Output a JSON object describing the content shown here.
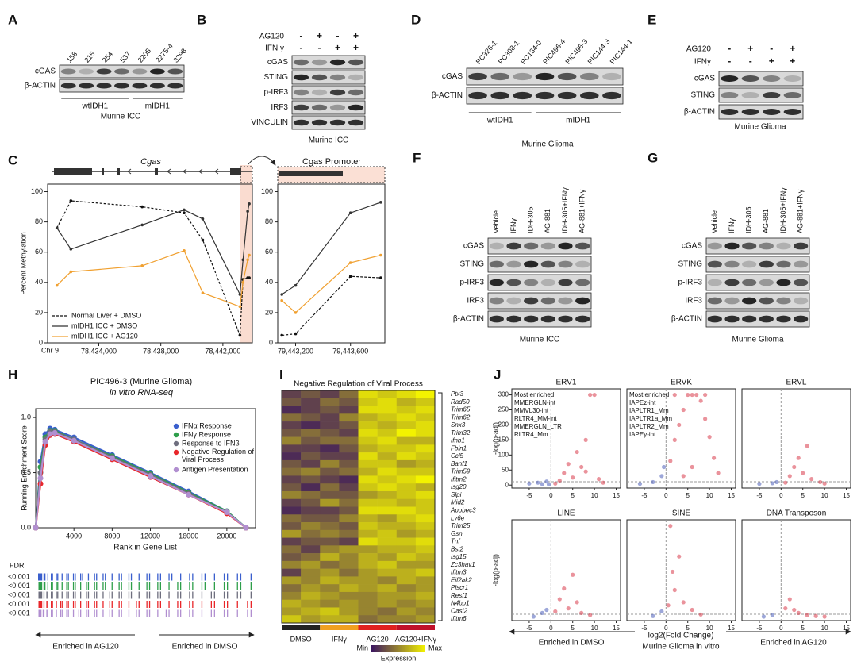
{
  "figure": {
    "letters": [
      "A",
      "B",
      "C",
      "D",
      "E",
      "F",
      "G",
      "H",
      "I",
      "J"
    ],
    "blots": {
      "A": {
        "lanes": [
          "158",
          "215",
          "254",
          "537",
          "2205",
          "2275-4",
          "3298"
        ],
        "rows": [
          "cGAS",
          "β-ACTIN"
        ],
        "groups": [
          "wtIDH1",
          "mIDH1"
        ],
        "caption": "Murine ICC"
      },
      "B": {
        "treatments": [
          {
            "name": "AG120",
            "marks": [
              "-",
              "+",
              "-",
              "+"
            ]
          },
          {
            "name": "IFN γ",
            "marks": [
              "-",
              "-",
              "+",
              "+"
            ]
          }
        ],
        "rows": [
          "cGAS",
          "STING",
          "p-IRF3",
          "IRF3",
          "VINCULIN"
        ],
        "caption": "Murine ICC"
      },
      "D": {
        "lanes": [
          "PC326-1",
          "PC308-1",
          "PC134-0",
          "PIC496-4",
          "PIC496-3",
          "PIC144-3",
          "PIC144-1"
        ],
        "rows": [
          "cGAS",
          "β-ACTIN"
        ],
        "groups": [
          "wtIDH1",
          "mIDH1"
        ],
        "caption": "Murine Glioma"
      },
      "E": {
        "treatments": [
          {
            "name": "AG120",
            "marks": [
              "-",
              "+",
              "-",
              "+"
            ]
          },
          {
            "name": "IFNγ",
            "marks": [
              "-",
              "-",
              "+",
              "+"
            ]
          }
        ],
        "rows": [
          "cGAS",
          "STING",
          "β-ACTIN"
        ],
        "caption": "Murine Glioma"
      },
      "F": {
        "lanes": [
          "Vehicle",
          "IFNγ",
          "IDH-305",
          "AG-881",
          "IDH-305+IFNγ",
          "AG-881+IFNγ"
        ],
        "rows": [
          "cGAS",
          "STING",
          "p-IRF3",
          "IRF3",
          "β-ACTIN"
        ],
        "caption": "Murine ICC"
      },
      "G": {
        "lanes": [
          "Vehicle",
          "IFNγ",
          "IDH-305",
          "AG-881",
          "IDH-305+IFNγ",
          "AG-881+IFNγ"
        ],
        "rows": [
          "cGAS",
          "STING",
          "p-IRF3",
          "IRF3",
          "β-ACTIN"
        ],
        "caption": "Murine Glioma"
      }
    },
    "volcano": {
      "xlabel": "log2(Fold Change)",
      "subtitle": "Murine Glioma in vitro",
      "left": "Enriched in DMSO",
      "right": "Enriched in AG120"
    }
  },
  "chart_data": [
    {
      "type": "line",
      "title": "Cgas",
      "xlabel": "Chr 9",
      "ylabel": "Percent Methylation",
      "legend": "lower left",
      "xlim": [
        78430700,
        78443900
      ],
      "xticks": [
        {
          "value": 78434000,
          "label": "78,434,000"
        },
        {
          "value": 78438000,
          "label": "78,438,000"
        },
        {
          "value": 78442000,
          "label": "78,442,000"
        }
      ],
      "ylim": [
        0,
        105
      ],
      "yticks": [
        0,
        20,
        40,
        60,
        80,
        100
      ],
      "x": [
        78431300,
        78432200,
        78436800,
        78439500,
        78440700,
        78443100,
        78443300,
        78443600,
        78443700
      ],
      "series": [
        {
          "name": "Normal Liver + DMSO",
          "color": "#111111",
          "dashed": true,
          "values": [
            76,
            94,
            90,
            86,
            68,
            5,
            42,
            43,
            43
          ]
        },
        {
          "name": "mIDH1 ICC + DMSO",
          "color": "#333333",
          "values": [
            76,
            62,
            78,
            88,
            82,
            32,
            55,
            87,
            92
          ]
        },
        {
          "name": "mIDH1 ICC + AG120",
          "color": "#f0a030",
          "values": [
            38,
            47,
            51,
            61,
            33,
            24,
            40,
            55,
            58
          ]
        }
      ]
    },
    {
      "type": "line",
      "title": "Cgas Promoter",
      "xlim": [
        79443070,
        79443850
      ],
      "xticks": [
        {
          "value": 79443200,
          "label": "79,443,200"
        },
        {
          "value": 79443600,
          "label": "79,443,600"
        }
      ],
      "ylim": [
        0,
        105
      ],
      "yticks": [
        0,
        20,
        40,
        60,
        80,
        100
      ],
      "x": [
        79443100,
        79443200,
        79443600,
        79443820
      ],
      "series": [
        {
          "color": "#111111",
          "dashed": true,
          "values": [
            5,
            6,
            44,
            43
          ]
        },
        {
          "color": "#333333",
          "values": [
            32,
            38,
            86,
            93
          ]
        },
        {
          "color": "#f0a030",
          "values": [
            28,
            20,
            53,
            58
          ]
        }
      ]
    },
    {
      "type": "line",
      "title": "PIC496-3 (Murine Glioma)",
      "subtitle": "in vitro RNA-seq",
      "xlabel": "Rank in Gene List",
      "ylabel": "Running Enrichment Score",
      "legend": "upper right",
      "markers": true,
      "xlim": [
        0,
        23000
      ],
      "xticks": [
        4000,
        8000,
        12000,
        16000,
        20000
      ],
      "ylim": [
        0,
        1.08
      ],
      "yticks": [
        {
          "value": 0,
          "label": "0.0"
        },
        0.5,
        {
          "value": 1,
          "label": "1.0"
        }
      ],
      "x": [
        0,
        500,
        1000,
        1500,
        2000,
        4000,
        8000,
        12000,
        16000,
        20000,
        22000
      ],
      "series": [
        {
          "name": "IFNα Response",
          "color": "#3a5fcd",
          "values": [
            0,
            0.6,
            0.85,
            0.9,
            0.89,
            0.82,
            0.66,
            0.5,
            0.33,
            0.15,
            0
          ]
        },
        {
          "name": "IFNγ Response",
          "color": "#2e9e4a",
          "values": [
            0,
            0.55,
            0.82,
            0.88,
            0.88,
            0.8,
            0.65,
            0.49,
            0.32,
            0.15,
            0
          ]
        },
        {
          "name": "Response to IFNβ",
          "color": "#6e6e7e",
          "values": [
            0,
            0.5,
            0.8,
            0.87,
            0.87,
            0.8,
            0.64,
            0.48,
            0.31,
            0.14,
            0
          ]
        },
        {
          "name": "Negative Regulation of Viral Process",
          "color": "#e8262a",
          "values": [
            0,
            0.4,
            0.75,
            0.84,
            0.85,
            0.78,
            0.62,
            0.46,
            0.3,
            0.13,
            0
          ]
        },
        {
          "name": "Antigen Presentation",
          "color": "#b18fd0",
          "values": [
            0,
            0.45,
            0.78,
            0.85,
            0.86,
            0.79,
            0.63,
            0.47,
            0.3,
            0.14,
            0
          ]
        }
      ],
      "fdr_label": "FDR",
      "fdr": [
        "<0.001",
        "<0.001",
        "<0.001",
        "<0.001",
        "<0.001"
      ],
      "arrow_labels": [
        "Enriched in AG120",
        "Enriched in DMSO"
      ]
    },
    {
      "type": "heatmap",
      "title": "Negative Regulation of Viral Process",
      "genes": [
        "Ptx3",
        "Rad50",
        "Trim65",
        "Trim62",
        "Snx3",
        "Trim32",
        "Ifnb1",
        "Fbln1",
        "Ccl5",
        "Banf1",
        "Trim59",
        "Ifitm2",
        "Isg20",
        "Slpi",
        "Mid2",
        "Apobec3",
        "Ly6e",
        "Trim25",
        "Gsn",
        "Tnf",
        "Bst2",
        "Isg15",
        "Zc3hav1",
        "Ifitm3",
        "Eif2ak2",
        "Plscr1",
        "Resf1",
        "N4bp1",
        "Oasl2",
        "Ifitm6"
      ],
      "columns": [
        "DMSO",
        "IFNγ",
        "AG120",
        "AG120+IFNγ"
      ],
      "column_colors": [
        "#222222",
        "#f0a020",
        "#e02020",
        "#c0102a"
      ],
      "colors": [
        "#3b1560",
        "#f3f300"
      ],
      "colorbar": {
        "min": "Min",
        "max": "Max",
        "label": "Expression"
      },
      "values": [
        [
          0.2,
          0.3,
          0.2,
          0.4,
          0.9,
          0.8,
          0.9,
          1
        ],
        [
          0.3,
          0.2,
          0.4,
          0.3,
          0.8,
          0.9,
          0.7,
          0.8
        ],
        [
          0.1,
          0.2,
          0.3,
          0.2,
          0.9,
          0.9,
          0.8,
          0.9
        ],
        [
          0.4,
          0.3,
          0.2,
          0.5,
          0.7,
          0.8,
          0.9,
          0.8
        ],
        [
          0.2,
          0.1,
          0.2,
          0.3,
          0.8,
          0.7,
          0.8,
          0.9
        ],
        [
          0.3,
          0.4,
          0.3,
          0.2,
          0.9,
          0.8,
          1,
          0.9
        ],
        [
          0.5,
          0.3,
          0.4,
          0.4,
          0.8,
          0.9,
          0.7,
          0.7
        ],
        [
          0.2,
          0.2,
          0.1,
          0.3,
          0.7,
          0.8,
          0.8,
          0.9
        ],
        [
          0.1,
          0.3,
          0.2,
          0.2,
          0.9,
          0.7,
          0.9,
          0.8
        ],
        [
          0.3,
          0.2,
          0.5,
          0.3,
          0.8,
          0.8,
          0.6,
          0.7
        ],
        [
          0.4,
          0.5,
          0.3,
          0.4,
          0.7,
          0.9,
          0.8,
          0.8
        ],
        [
          0.2,
          0.3,
          0.2,
          0.1,
          0.9,
          0.8,
          0.9,
          1
        ],
        [
          0.3,
          0.1,
          0.4,
          0.2,
          0.8,
          0.9,
          0.8,
          0.7
        ],
        [
          0.5,
          0.4,
          0.3,
          0.3,
          0.6,
          0.7,
          0.8,
          0.9
        ],
        [
          0.2,
          0.3,
          0.6,
          0.4,
          0.8,
          0.8,
          0.7,
          0.8
        ],
        [
          0.1,
          0.2,
          0.2,
          0.3,
          0.9,
          0.9,
          0.9,
          0.8
        ],
        [
          0.4,
          0.3,
          0.3,
          0.5,
          0.7,
          0.6,
          0.8,
          0.9
        ],
        [
          0.3,
          0.5,
          0.4,
          0.3,
          0.8,
          0.7,
          0.7,
          0.8
        ],
        [
          0.6,
          0.4,
          0.5,
          0.4,
          0.7,
          0.8,
          0.6,
          0.7
        ],
        [
          0.2,
          0.3,
          0.3,
          0.2,
          0.9,
          0.8,
          0.8,
          0.9
        ],
        [
          0.4,
          0.2,
          0.5,
          0.6,
          0.6,
          0.7,
          0.7,
          0.8
        ],
        [
          0.3,
          0.4,
          0.7,
          0.5,
          0.7,
          0.6,
          0.8,
          0.7
        ],
        [
          0.5,
          0.6,
          0.4,
          0.5,
          0.7,
          0.8,
          0.6,
          0.6
        ],
        [
          0.2,
          0.5,
          0.6,
          0.4,
          0.6,
          0.7,
          0.7,
          0.8
        ],
        [
          0.6,
          0.5,
          0.7,
          0.6,
          0.6,
          0.5,
          0.7,
          0.6
        ],
        [
          0.4,
          0.6,
          0.5,
          0.7,
          0.6,
          0.7,
          0.5,
          0.6
        ],
        [
          0.5,
          0.7,
          0.6,
          0.5,
          0.5,
          0.6,
          0.6,
          0.7
        ],
        [
          0.7,
          0.6,
          0.5,
          0.6,
          0.5,
          0.6,
          0.5,
          0.6
        ],
        [
          0.6,
          0.7,
          0.8,
          0.6,
          0.5,
          0.4,
          0.6,
          0.5
        ],
        [
          0.8,
          0.6,
          0.7,
          0.7,
          0.4,
          0.5,
          0.5,
          0.6
        ]
      ]
    },
    {
      "type": "scatter",
      "title": "ERV1",
      "ylabel": "-log(p-adj)",
      "annotations": [
        "Most enriched",
        "MMERGLN-int",
        "MMVL30-int",
        "RLTR4_MM-int",
        "MMERGLN_LTR",
        "RLTR4_Mm"
      ],
      "colors": [
        "#3c50b4",
        "#d62839"
      ],
      "xlim": [
        -9,
        16
      ],
      "xticks": [
        -5,
        0,
        5,
        10,
        15
      ],
      "ylim": [
        -10,
        320
      ],
      "yticks": [
        0,
        50,
        100,
        150,
        200,
        250,
        300
      ],
      "x": [
        -5,
        -3,
        -2,
        -1,
        -0.5,
        1,
        2,
        3,
        4,
        5,
        6,
        7,
        8,
        9,
        10,
        8,
        11,
        12
      ],
      "values": [
        5,
        8,
        3,
        12,
        2,
        5,
        15,
        40,
        70,
        25,
        110,
        60,
        150,
        300,
        300,
        45,
        20,
        8
      ]
    },
    {
      "type": "scatter",
      "title": "ERVK",
      "annotations": [
        "Most enriched",
        "IAPEz-int",
        "IAPLTR1_Mm",
        "IAPLTR1a_Mm",
        "IAPLTR2_Mm",
        "IAPEy-int"
      ],
      "colors": [
        "#3c50b4",
        "#d62839"
      ],
      "xlim": [
        -9,
        16
      ],
      "xticks": [
        -5,
        0,
        5,
        10,
        15
      ],
      "ylim": [
        -10,
        320
      ],
      "x": [
        -6,
        -3,
        -1,
        -0.5,
        1,
        2,
        3,
        4,
        5,
        6,
        7,
        8,
        9,
        10,
        11,
        6,
        4,
        12,
        9,
        2
      ],
      "values": [
        4,
        10,
        30,
        60,
        80,
        150,
        200,
        250,
        300,
        300,
        300,
        280,
        220,
        160,
        90,
        60,
        30,
        40,
        300,
        300
      ]
    },
    {
      "type": "scatter",
      "title": "ERVL",
      "colors": [
        "#3c50b4",
        "#d62839"
      ],
      "xlim": [
        -9,
        16
      ],
      "xticks": [
        -5,
        0,
        5,
        10,
        15
      ],
      "ylim": [
        -10,
        320
      ],
      "x": [
        -5,
        -2,
        -1,
        1,
        2,
        3,
        4,
        5,
        6,
        7,
        9,
        10
      ],
      "values": [
        4,
        6,
        10,
        8,
        30,
        60,
        90,
        40,
        130,
        20,
        10,
        5
      ]
    },
    {
      "type": "scatter",
      "title": "LINE",
      "ylabel": "-log(p-adj)",
      "colors": [
        "#3c50b4",
        "#d62839"
      ],
      "xlim": [
        -9,
        16
      ],
      "xticks": [
        -5,
        0,
        5,
        10,
        15
      ],
      "ylim": [
        -10,
        320
      ],
      "x": [
        -4,
        -2,
        -1,
        1,
        2,
        3,
        4,
        5,
        6,
        7,
        9
      ],
      "values": [
        3,
        15,
        25,
        20,
        60,
        95,
        30,
        140,
        50,
        15,
        8
      ]
    },
    {
      "type": "scatter",
      "title": "SINE",
      "colors": [
        "#3c50b4",
        "#d62839"
      ],
      "xlim": [
        -9,
        16
      ],
      "xticks": [
        -5,
        0,
        5,
        10,
        15
      ],
      "ylim": [
        -10,
        320
      ],
      "x": [
        -3,
        -1,
        0.5,
        1,
        1.5,
        2,
        3,
        4,
        6,
        8
      ],
      "values": [
        5,
        20,
        40,
        300,
        150,
        90,
        200,
        50,
        25,
        10
      ]
    },
    {
      "type": "scatter",
      "title": "DNA Transposon",
      "colors": [
        "#3c50b4",
        "#d62839"
      ],
      "xlim": [
        -9,
        16
      ],
      "xticks": [
        -5,
        0,
        5,
        10,
        15
      ],
      "ylim": [
        -10,
        320
      ],
      "x": [
        -4,
        -2,
        1,
        2,
        3,
        4,
        6,
        8,
        10
      ],
      "values": [
        3,
        8,
        30,
        60,
        25,
        15,
        8,
        5,
        3
      ]
    }
  ]
}
